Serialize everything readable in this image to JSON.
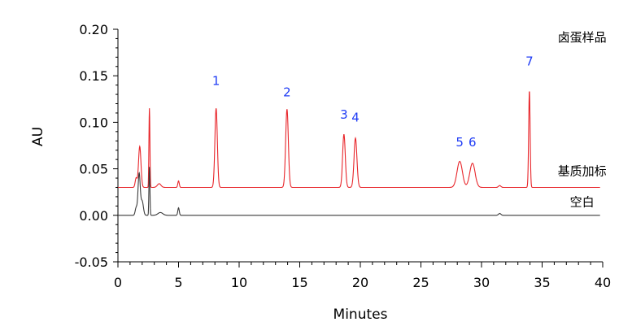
{
  "chart_data": {
    "type": "line",
    "xlabel": "Minutes",
    "ylabel": "AU",
    "xlim": [
      0,
      40
    ],
    "ylim": [
      -0.05,
      0.2
    ],
    "x_ticks": [
      "0",
      "5",
      "10",
      "15",
      "20",
      "25",
      "30",
      "35",
      "40"
    ],
    "y_ticks": [
      "-0.05",
      "0.00",
      "0.05",
      "0.10",
      "0.15",
      "0.20"
    ],
    "grid": false,
    "series": [
      {
        "name": "基质加标",
        "color": "#e8262b",
        "baseline": 0.03,
        "peaks": [
          {
            "t": 1.5,
            "h": 0.01,
            "w": 0.08
          },
          {
            "t": 1.8,
            "h": 0.044,
            "w": 0.1
          },
          {
            "t": 2.6,
            "h": 0.085,
            "w": 0.04
          },
          {
            "t": 3.4,
            "h": 0.004,
            "w": 0.15
          },
          {
            "t": 5.0,
            "h": 0.007,
            "w": 0.06
          },
          {
            "t": 8.1,
            "h": 0.085,
            "w": 0.1
          },
          {
            "t": 13.95,
            "h": 0.084,
            "w": 0.11
          },
          {
            "t": 18.65,
            "h": 0.057,
            "w": 0.11
          },
          {
            "t": 19.6,
            "h": 0.053,
            "w": 0.12
          },
          {
            "t": 28.2,
            "h": 0.028,
            "w": 0.22
          },
          {
            "t": 29.25,
            "h": 0.026,
            "w": 0.22
          },
          {
            "t": 31.5,
            "h": 0.002,
            "w": 0.1
          },
          {
            "t": 33.95,
            "h": 0.104,
            "w": 0.06
          }
        ]
      },
      {
        "name": "空白",
        "color": "#3a3a3a",
        "baseline": 0.0,
        "peaks": [
          {
            "t": 1.5,
            "h": 0.008,
            "w": 0.08
          },
          {
            "t": 1.75,
            "h": 0.045,
            "w": 0.09
          },
          {
            "t": 2.0,
            "h": 0.015,
            "w": 0.1
          },
          {
            "t": 2.6,
            "h": 0.052,
            "w": 0.04
          },
          {
            "t": 3.5,
            "h": 0.003,
            "w": 0.2
          },
          {
            "t": 5.0,
            "h": 0.008,
            "w": 0.06
          },
          {
            "t": 31.5,
            "h": 0.002,
            "w": 0.1
          }
        ]
      }
    ],
    "peak_labels": [
      {
        "text": "1",
        "t": 8.1,
        "y": 0.14
      },
      {
        "text": "2",
        "t": 13.95,
        "y": 0.128
      },
      {
        "text": "3",
        "t": 18.65,
        "y": 0.104
      },
      {
        "text": "4",
        "t": 19.6,
        "y": 0.101
      },
      {
        "text": "5",
        "t": 28.2,
        "y": 0.074
      },
      {
        "text": "6",
        "t": 29.25,
        "y": 0.074
      },
      {
        "text": "7",
        "t": 33.95,
        "y": 0.161
      }
    ],
    "peak_label_color": "#1f3cf5",
    "trace_labels": [
      {
        "text": "卤蛋样品",
        "t": 38.3,
        "y": 0.187
      },
      {
        "text": "基质加标",
        "t": 38.3,
        "y": 0.043
      },
      {
        "text": "空白",
        "t": 38.3,
        "y": 0.01
      }
    ]
  }
}
